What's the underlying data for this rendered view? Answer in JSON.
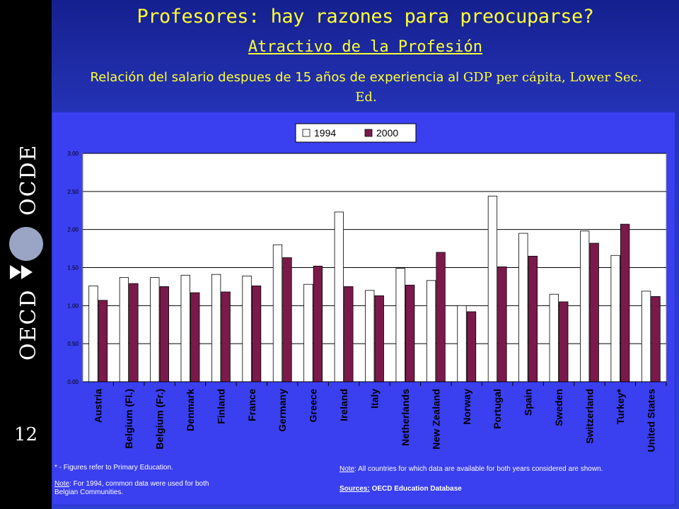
{
  "slide": {
    "title": "Profesores: hay razones para preocuparse?",
    "subtitle": "Atractivo de la Profesión",
    "caption_sans": "Relación del salario despues de 15 años de experiencia al ",
    "caption_serif": "GDP per cápita, Lower Sec. Ed.",
    "slide_number": "12",
    "logo_text_left": "OECD",
    "logo_text_right": "OCDE"
  },
  "notes": {
    "primary_note": "* - Figures refer to Primary Education.",
    "belgium_note_label": "Note",
    "belgium_note_text": ": For 1994, common data were used for both Belgian Communities.",
    "countries_note_label": "Note",
    "countries_note_text": ": All countries for which data are available for both years considered are shown.",
    "sources_label": "Sources:",
    "sources_text": " OECD Education Database"
  },
  "chart_data": {
    "type": "bar",
    "categories": [
      "Austria",
      "Belgium (Fl.)",
      "Belgium (Fr.)",
      "Denmark",
      "Finland",
      "France",
      "Germany",
      "Greece",
      "Ireland",
      "Italy",
      "Netherlands",
      "New Zealand",
      "Norway",
      "Portugal",
      "Spain",
      "Sweden",
      "Switzerland",
      "Turkey*",
      "United States"
    ],
    "series": [
      {
        "name": "1994",
        "color": "#ffffff",
        "values": [
          1.26,
          1.37,
          1.37,
          1.4,
          1.41,
          1.39,
          1.8,
          1.28,
          2.23,
          1.2,
          1.49,
          1.33,
          1.0,
          2.44,
          1.95,
          1.15,
          1.98,
          1.66,
          1.19
        ]
      },
      {
        "name": "2000",
        "color": "#7b1a4a",
        "values": [
          1.07,
          1.29,
          1.25,
          1.17,
          1.18,
          1.26,
          1.63,
          1.52,
          1.25,
          1.13,
          1.27,
          1.7,
          0.92,
          1.51,
          1.65,
          1.05,
          1.82,
          2.07,
          1.12
        ]
      }
    ],
    "yticks": [
      "0.00",
      "0.50",
      "1.00",
      "1.50",
      "2.00",
      "2.50",
      "3.00"
    ],
    "ylim": [
      0,
      3
    ],
    "grid": true,
    "legend": "top-center"
  }
}
